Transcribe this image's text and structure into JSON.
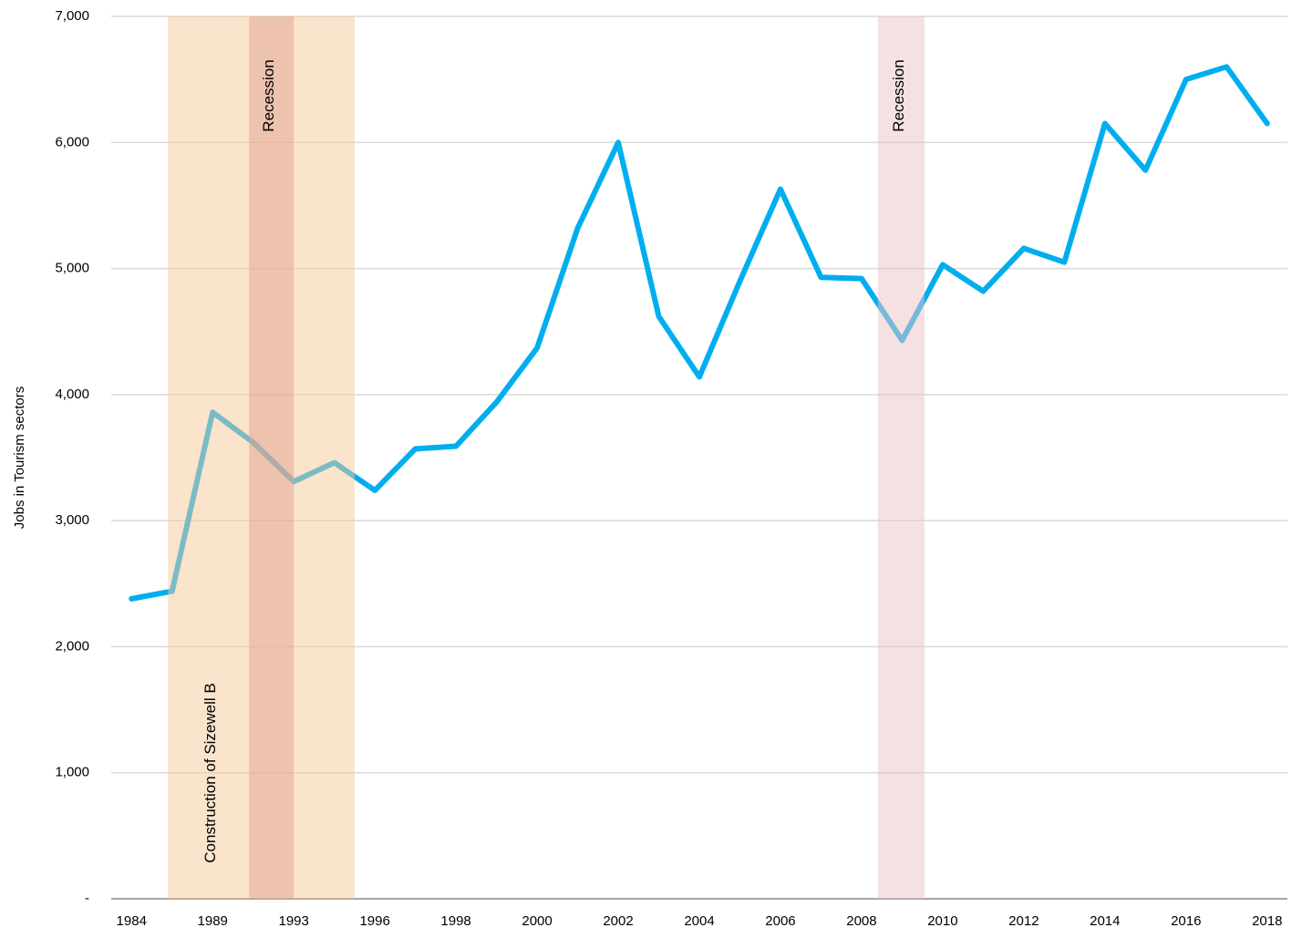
{
  "chart_data": {
    "type": "line",
    "y_label": "Jobs in Tourism sectors",
    "categories": [
      "1984",
      null,
      "1989",
      null,
      "1993",
      null,
      "1996",
      null,
      "1998",
      null,
      "2000",
      null,
      "2002",
      null,
      "2004",
      null,
      "2006",
      null,
      "2008",
      null,
      "2010",
      null,
      "2012",
      null,
      "2014",
      null,
      "2016",
      null,
      "2018"
    ],
    "series": [
      {
        "color": "#00aeef",
        "values": [
          2380,
          2440,
          3860,
          3620,
          3310,
          3460,
          3240,
          3570,
          3590,
          3940,
          4370,
          5320,
          6000,
          4620,
          4140,
          4900,
          5630,
          4930,
          4920,
          4430,
          5030,
          4820,
          5160,
          5050,
          6150,
          5780,
          6500,
          6600,
          6150
        ]
      }
    ],
    "ylim": [
      0,
      7000
    ],
    "yticks": [
      {
        "value": 0,
        "label": "-"
      },
      {
        "value": 1000,
        "label": "1,000"
      },
      {
        "value": 2000,
        "label": "2,000"
      },
      {
        "value": 3000,
        "label": "3,000"
      },
      {
        "value": 4000,
        "label": "4,000"
      },
      {
        "value": 5000,
        "label": "5,000"
      },
      {
        "value": 6000,
        "label": "6,000"
      },
      {
        "value": 7000,
        "label": "7,000"
      }
    ],
    "grid": true,
    "annotations": [
      {
        "text": "Construction of Sizewell B",
        "x_range": [
          0.9,
          5.5
        ],
        "color": "#f5c99a"
      },
      {
        "text": "Recession",
        "x_range": [
          2.9,
          4.0
        ],
        "color": "#e0a090"
      },
      {
        "text": "Recession",
        "x_range": [
          18.4,
          19.55
        ],
        "color": "#ecc3c3"
      }
    ]
  }
}
